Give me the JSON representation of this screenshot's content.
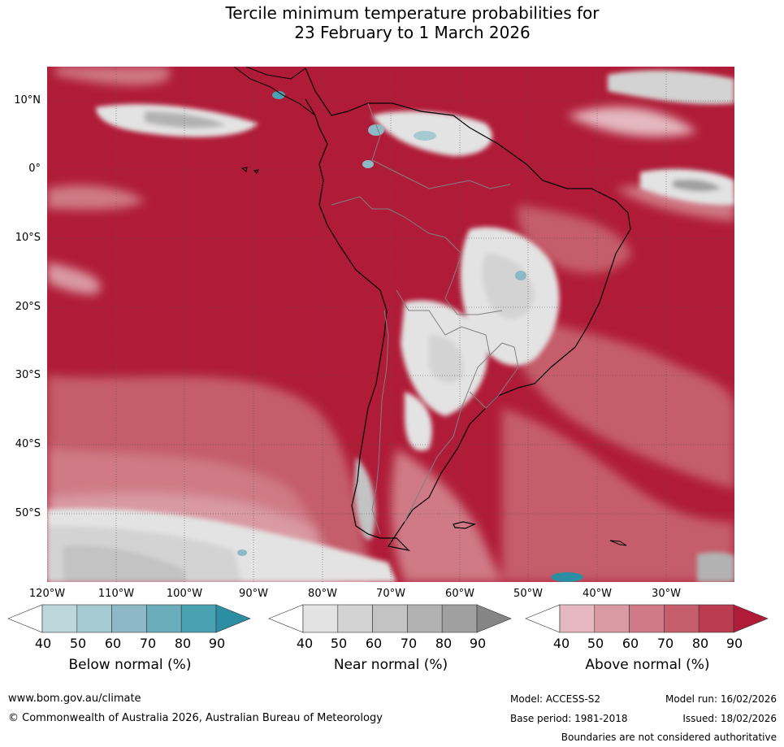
{
  "title": {
    "line1": "Tercile minimum temperature probabilities for",
    "line2": "23 February to 1 March 2026"
  },
  "map": {
    "region": "South America and surrounding oceans",
    "lat_labels": [
      "10°N",
      "0°",
      "10°S",
      "20°S",
      "30°S",
      "40°S",
      "50°S"
    ],
    "lon_labels": [
      "120°W",
      "110°W",
      "100°W",
      "90°W",
      "80°W",
      "70°W",
      "60°W",
      "50°W",
      "40°W",
      "30°W"
    ],
    "colors": {
      "land_border": "#000000",
      "country_border": "#808080",
      "grid": "#555555"
    }
  },
  "colorbars": {
    "ticks": [
      "40",
      "50",
      "60",
      "70",
      "80",
      "90"
    ],
    "below": {
      "label": "Below normal (%)",
      "colors": [
        "#ffffff",
        "#bcd6dc",
        "#a6cad1",
        "#8cb9c5",
        "#6cadbb",
        "#49a1b1",
        "#2b8ea2"
      ]
    },
    "near": {
      "label": "Near normal (%)",
      "colors": [
        "#ffffff",
        "#e3e3e3",
        "#d3d3d3",
        "#c3c3c3",
        "#b2b2b2",
        "#a0a0a0",
        "#858585"
      ]
    },
    "above": {
      "label": "Above normal (%)",
      "colors": [
        "#ffffff",
        "#e4b8be",
        "#d99aa3",
        "#cf7a86",
        "#c55d6a",
        "#bb3b4f",
        "#b01c37"
      ]
    }
  },
  "footer": {
    "website": "www.bom.gov.au/climate",
    "copyright": "© Commonwealth of Australia 2026, Australian Bureau of Meteorology",
    "model": "Model: ACCESS-S2",
    "model_run": "Model run: 16/02/2026",
    "base_period": "Base period: 1981-2018",
    "issued": "Issued: 18/02/2026",
    "disclaimer": "Boundaries are not considered authoritative"
  }
}
